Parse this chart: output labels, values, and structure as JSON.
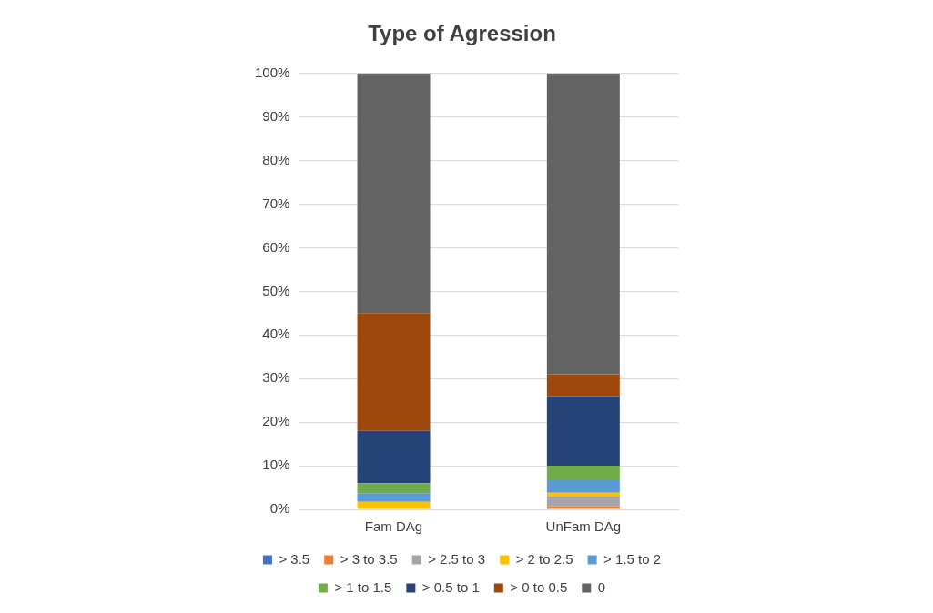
{
  "chart_data": {
    "type": "bar",
    "title": "Type of Agression",
    "stacked": true,
    "categories": [
      "Fam DAg",
      "UnFam DAg"
    ],
    "series": [
      {
        "name": "> 3.5",
        "color": "#4472c4",
        "values": [
          0,
          0
        ]
      },
      {
        "name": "> 3 to 3.5",
        "color": "#ed7d31",
        "values": [
          0,
          0.7
        ]
      },
      {
        "name": "> 2.5 to 3",
        "color": "#a5a5a5",
        "values": [
          0,
          2.2
        ]
      },
      {
        "name": "> 2 to 2.5",
        "color": "#ffc000",
        "values": [
          1.7,
          0.9
        ]
      },
      {
        "name": "> 1.5 to 2",
        "color": "#5b9bd5",
        "values": [
          2,
          3.1
        ]
      },
      {
        "name": "> 1 to 1.5",
        "color": "#70ad47",
        "values": [
          2.3,
          3.1
        ]
      },
      {
        "name": "> 0.5 to 1",
        "color": "#264478",
        "values": [
          12,
          16
        ]
      },
      {
        "name": "> 0 to 0.5",
        "color": "#9e480e",
        "values": [
          27,
          5
        ]
      },
      {
        "name": "0",
        "color": "#636363",
        "values": [
          55,
          69
        ]
      }
    ],
    "ylim": [
      0,
      100
    ],
    "yticks": [
      {
        "value": 0,
        "label": "0%"
      },
      {
        "value": 10,
        "label": "10%"
      },
      {
        "value": 20,
        "label": "20%"
      },
      {
        "value": 30,
        "label": "30%"
      },
      {
        "value": 40,
        "label": "40%"
      },
      {
        "value": 50,
        "label": "50%"
      },
      {
        "value": 60,
        "label": "60%"
      },
      {
        "value": 70,
        "label": "70%"
      },
      {
        "value": 80,
        "label": "80%"
      },
      {
        "value": 90,
        "label": "90%"
      },
      {
        "value": 100,
        "label": "100%"
      }
    ],
    "grid": "y",
    "legend": "bottom"
  }
}
